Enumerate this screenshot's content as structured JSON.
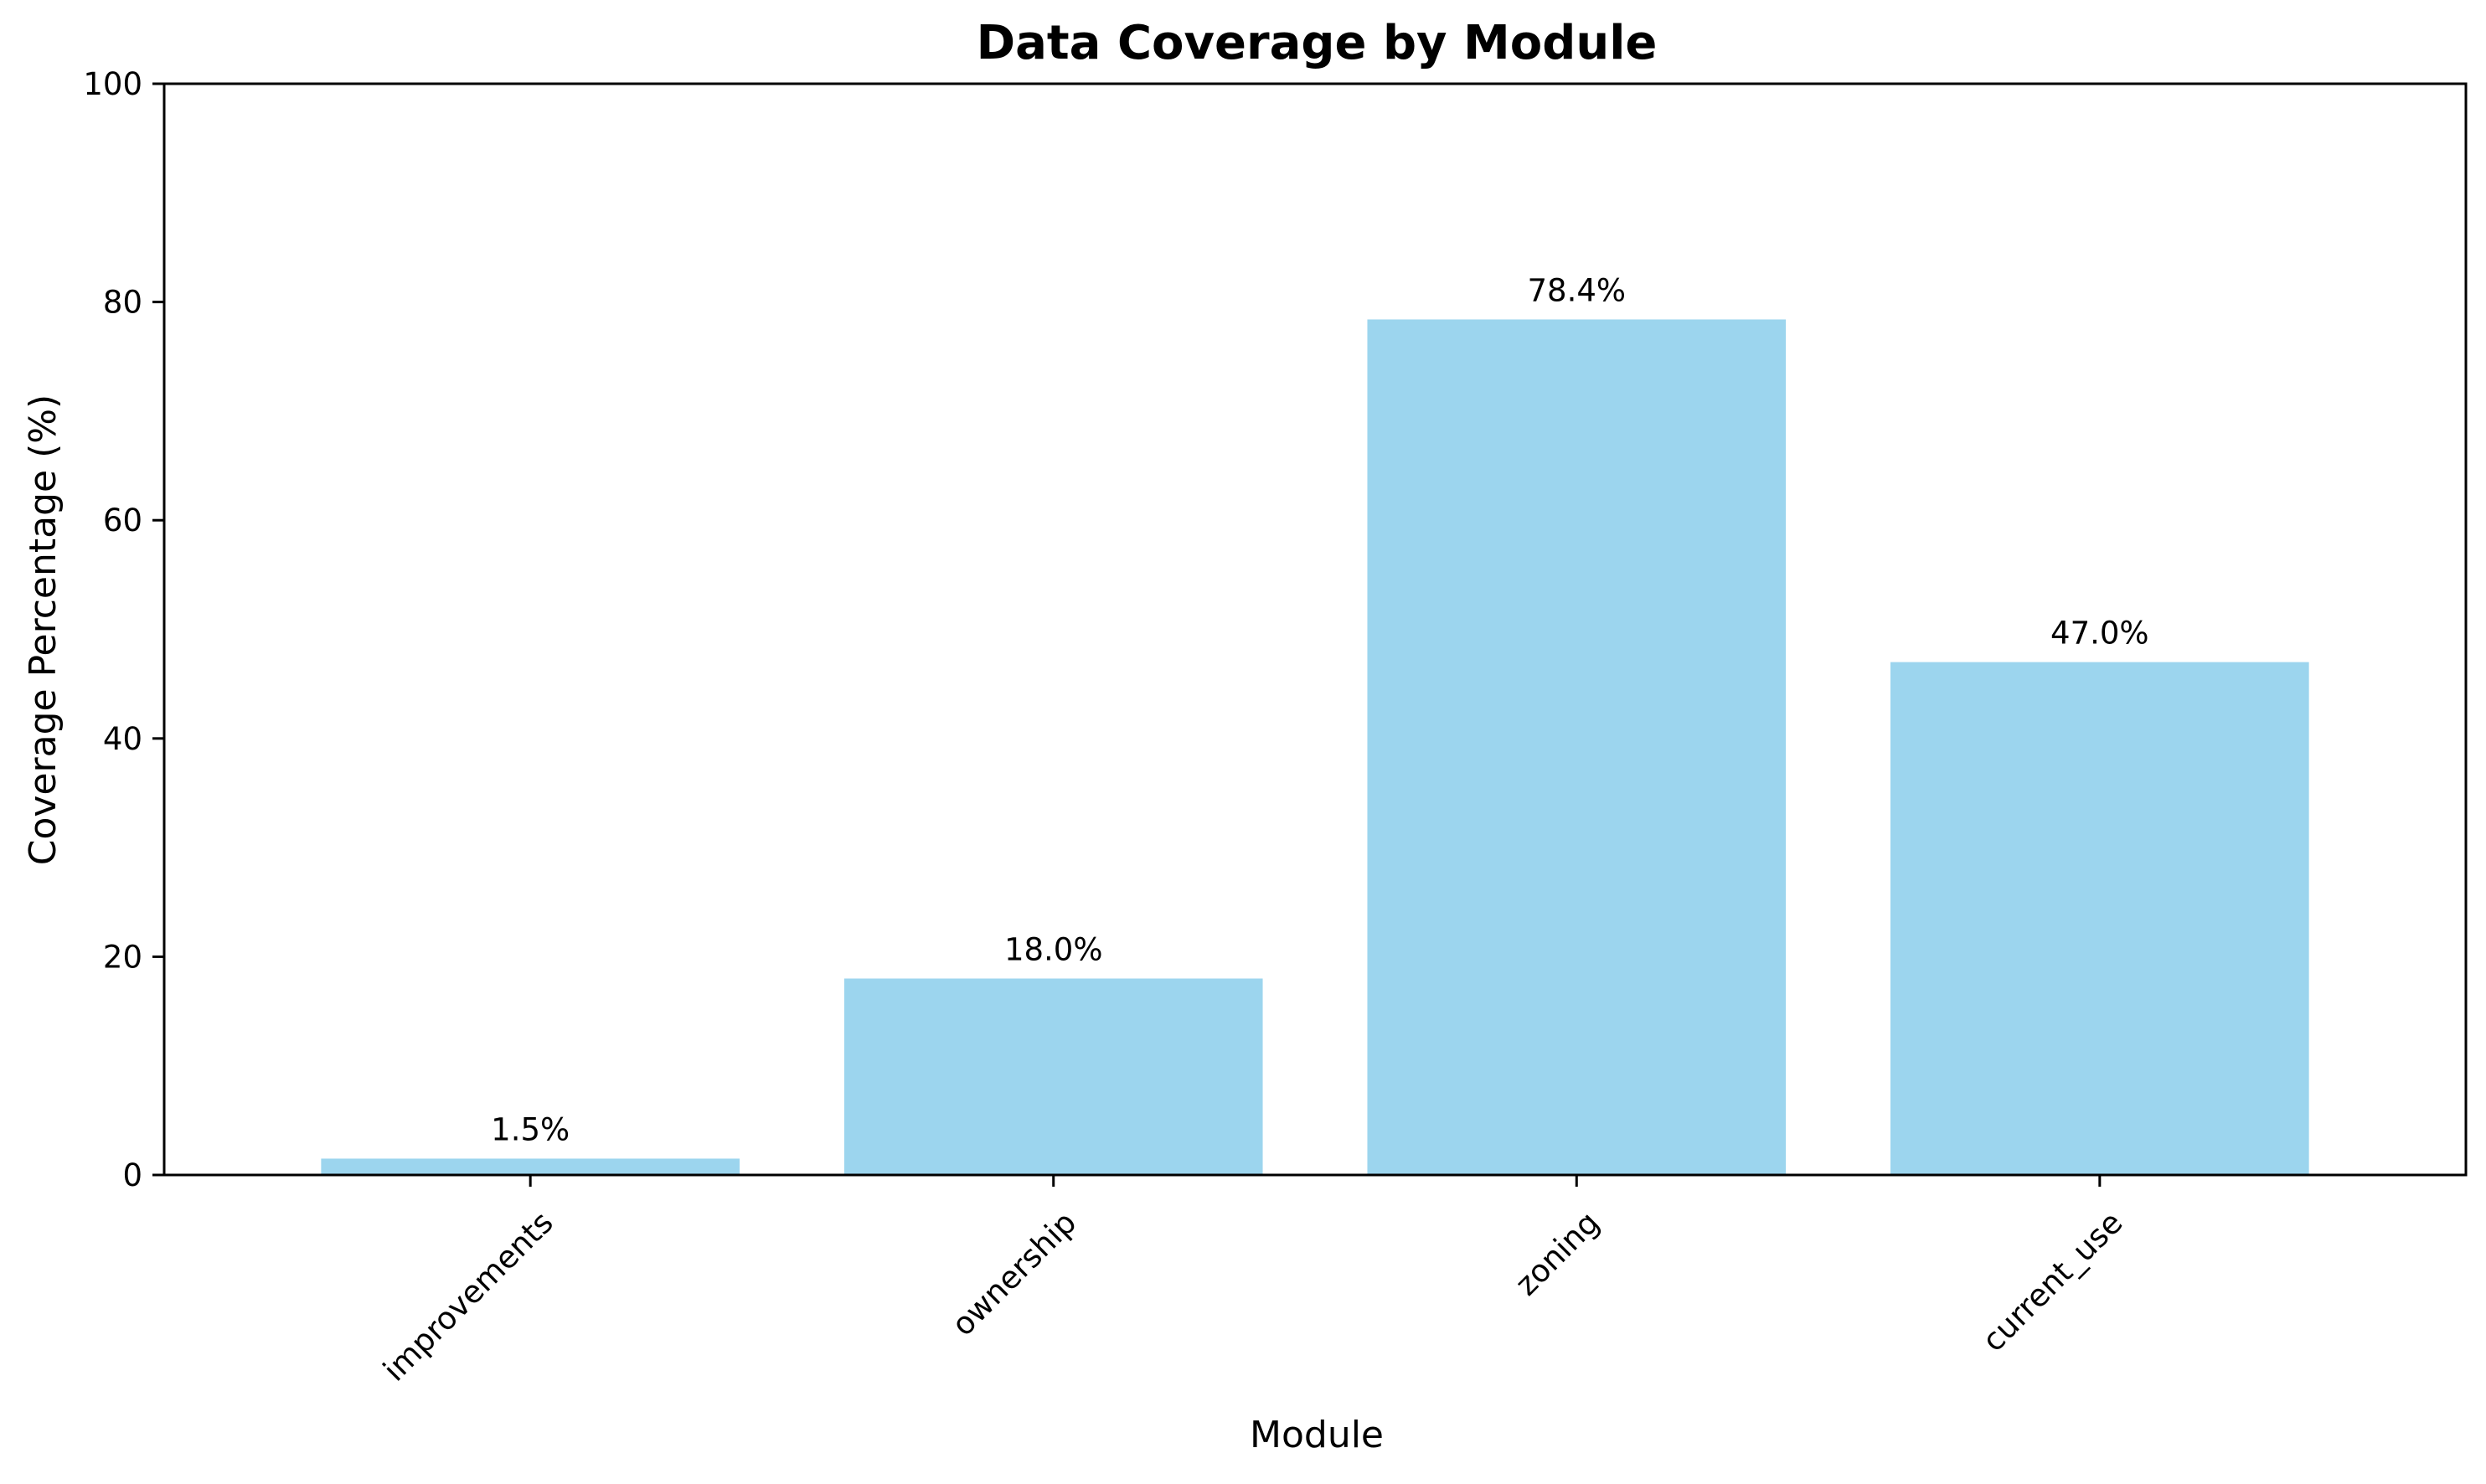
{
  "chart_data": {
    "type": "bar",
    "title": "Data Coverage by Module",
    "xlabel": "Module",
    "ylabel": "Coverage Percentage (%)",
    "categories": [
      "improvements",
      "ownership",
      "zoning",
      "current_use"
    ],
    "values": [
      1.5,
      18.0,
      78.4,
      47.0
    ],
    "data_labels": [
      "1.5%",
      "18.0%",
      "78.4%",
      "47.0%"
    ],
    "ylim": [
      0,
      100
    ],
    "yticks": [
      0,
      20,
      40,
      60,
      80,
      100
    ],
    "ytick_labels": [
      "0",
      "20",
      "40",
      "60",
      "80",
      "100"
    ],
    "grid": false,
    "legend": "none",
    "colors": {
      "bar": "#9cd5ee",
      "axis": "#000000"
    }
  }
}
